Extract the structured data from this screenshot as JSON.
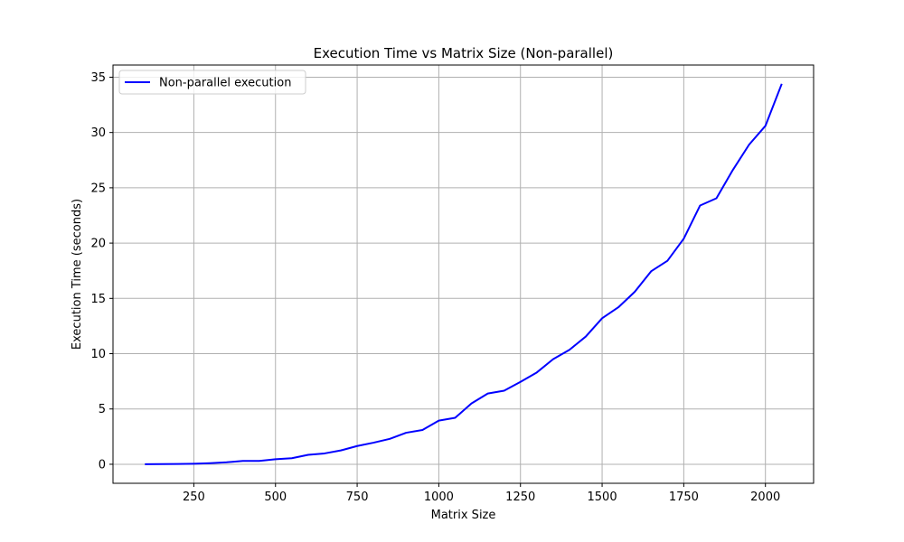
{
  "chart_data": {
    "type": "line",
    "title": "Execution Time vs Matrix Size (Non-parallel)",
    "xlabel": "Matrix Size",
    "ylabel": "Execution Time (seconds)",
    "xlim": [
      2.5,
      2147.5
    ],
    "ylim": [
      -1.72,
      36.1
    ],
    "xticks": [
      250,
      500,
      750,
      1000,
      1250,
      1500,
      1750,
      2000
    ],
    "yticks": [
      0,
      5,
      10,
      15,
      20,
      25,
      30,
      35
    ],
    "grid": true,
    "legend_position": "top-left",
    "series": [
      {
        "name": "Non-parallel execution",
        "color": "#0000ff",
        "x": [
          100,
          150,
          200,
          250,
          300,
          350,
          400,
          450,
          500,
          550,
          600,
          650,
          700,
          750,
          800,
          850,
          900,
          950,
          1000,
          1050,
          1100,
          1150,
          1200,
          1250,
          1300,
          1350,
          1400,
          1450,
          1500,
          1550,
          1600,
          1650,
          1700,
          1750,
          1800,
          1850,
          1900,
          1950,
          2000,
          2050
        ],
        "y": [
          0.01,
          0.02,
          0.03,
          0.05,
          0.1,
          0.18,
          0.3,
          0.3,
          0.45,
          0.55,
          0.85,
          0.98,
          1.25,
          1.65,
          1.95,
          2.3,
          2.85,
          3.1,
          3.95,
          4.2,
          5.5,
          6.4,
          6.65,
          7.45,
          8.3,
          9.5,
          10.35,
          11.55,
          13.2,
          14.2,
          15.6,
          17.45,
          18.4,
          20.4,
          23.4,
          24.05,
          26.6,
          28.9,
          30.6,
          34.4
        ]
      }
    ]
  }
}
